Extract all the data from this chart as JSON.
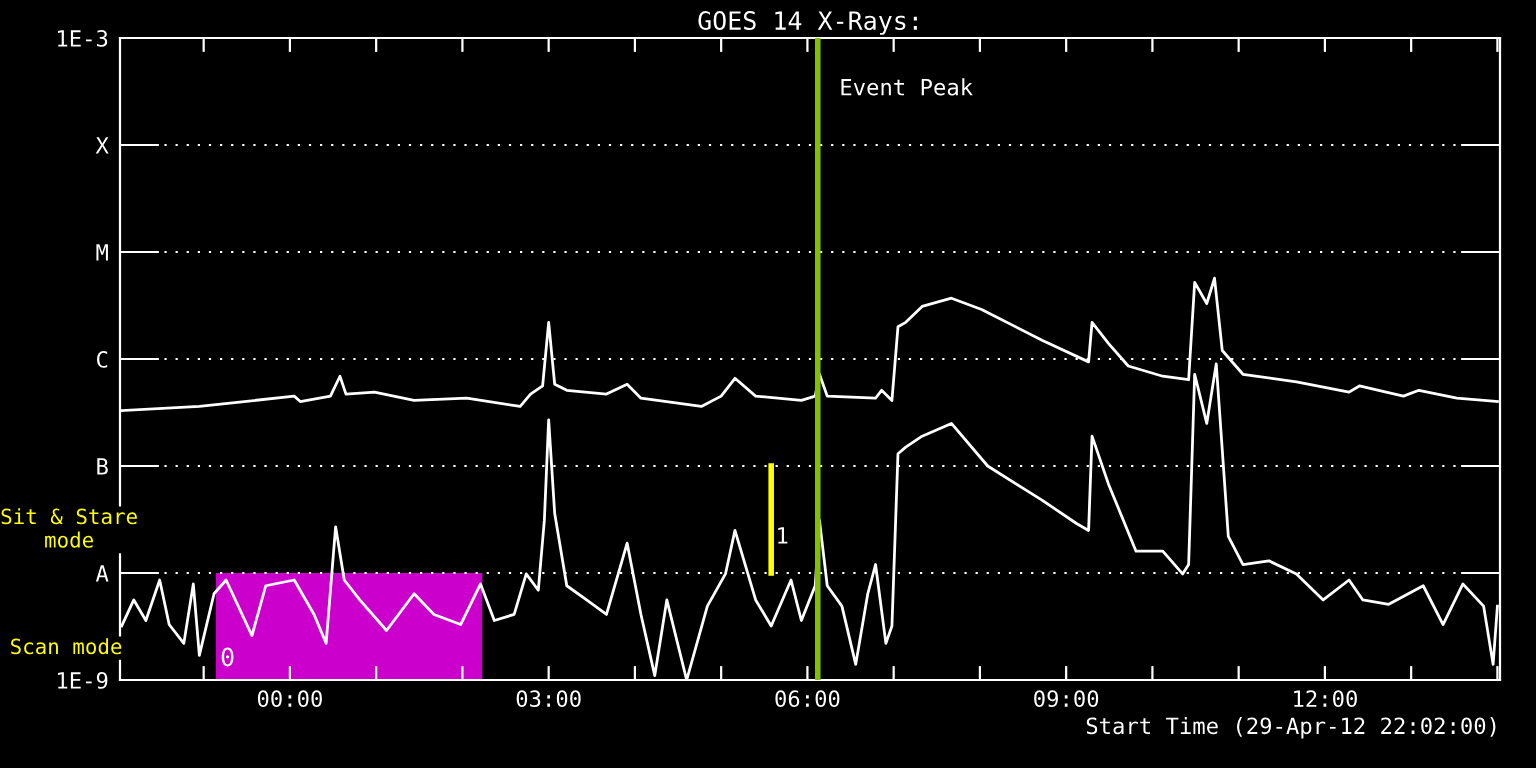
{
  "chart_data": {
    "type": "line",
    "title": "GOES 14 X-Rays:",
    "xlabel": "Start Time (29-Apr-12 22:02:00)",
    "log": "y",
    "grid": "y",
    "legend": false,
    "marker": "none",
    "line_style": "solid",
    "xlim": [
      -1.97,
      14.03
    ],
    "xticks": [
      {
        "value": -1,
        "label": null
      },
      {
        "value": 0,
        "label": "00:00"
      },
      {
        "value": 1,
        "label": null
      },
      {
        "value": 2,
        "label": null
      },
      {
        "value": 3,
        "label": "03:00"
      },
      {
        "value": 4,
        "label": null
      },
      {
        "value": 5,
        "label": null
      },
      {
        "value": 6,
        "label": "06:00"
      },
      {
        "value": 7,
        "label": null
      },
      {
        "value": 8,
        "label": null
      },
      {
        "value": 9,
        "label": "09:00"
      },
      {
        "value": 10,
        "label": null
      },
      {
        "value": 11,
        "label": null
      },
      {
        "value": 12,
        "label": "12:00"
      },
      {
        "value": 13,
        "label": null
      },
      {
        "value": 14,
        "label": null
      }
    ],
    "ylim": [
      1e-09,
      0.001
    ],
    "yticks": [
      {
        "value": 1e-09,
        "label": "1E-9"
      },
      {
        "value": 1e-08,
        "label": "A"
      },
      {
        "value": 1e-07,
        "label": "B"
      },
      {
        "value": 1e-06,
        "label": "C"
      },
      {
        "value": 1e-05,
        "label": "M"
      },
      {
        "value": 0.0001,
        "label": "X"
      },
      {
        "value": 0.001,
        "label": "1E-3"
      }
    ],
    "series": [
      {
        "color": "#ffffff",
        "x": [
          -1.95,
          -1.05,
          0.05,
          0.12,
          0.47,
          0.58,
          0.65,
          0.98,
          1.44,
          2.05,
          2.67,
          2.79,
          2.93,
          3.0,
          3.07,
          3.21,
          3.67,
          3.91,
          4.07,
          4.77,
          5.0,
          5.16,
          5.4,
          5.93,
          6.09,
          6.14,
          6.23,
          6.79,
          6.86,
          6.98,
          7.05,
          7.14,
          7.33,
          7.67,
          8.02,
          8.72,
          9.26,
          9.3,
          9.49,
          9.72,
          10.12,
          10.42,
          10.49,
          10.63,
          10.72,
          10.81,
          11.05,
          11.67,
          12.28,
          12.4,
          12.91,
          13.09,
          13.53,
          14.0
        ],
        "values": [
          3.3e-07,
          3.6e-07,
          4.5e-07,
          4e-07,
          4.5e-07,
          6.9e-07,
          4.7e-07,
          4.9e-07,
          4.1e-07,
          4.3e-07,
          3.6e-07,
          4.7e-07,
          5.6e-07,
          2.2e-06,
          5.8e-07,
          5.1e-07,
          4.7e-07,
          5.8e-07,
          4.3e-07,
          3.6e-07,
          4.5e-07,
          6.6e-07,
          4.5e-07,
          4.1e-07,
          4.5e-07,
          7.2e-07,
          4.5e-07,
          4.3e-07,
          5.1e-07,
          4.1e-07,
          2e-06,
          2.2e-06,
          3.1e-06,
          3.7e-06,
          2.9e-06,
          1.5e-06,
          9.4e-07,
          2.2e-06,
          1.4e-06,
          8.6e-07,
          6.9e-07,
          6.4e-07,
          5.2e-06,
          3.3e-06,
          5.7e-06,
          1.2e-06,
          7.2e-07,
          6.1e-07,
          4.9e-07,
          5.6e-07,
          4.5e-07,
          5.1e-07,
          4.3e-07,
          4e-07
        ]
      },
      {
        "color": "#ffffff",
        "x": [
          -1.95,
          -1.81,
          -1.67,
          -1.51,
          -1.4,
          -1.23,
          -1.12,
          -1.05,
          -0.88,
          -0.74,
          -0.44,
          -0.28,
          0.05,
          0.28,
          0.42,
          0.53,
          0.63,
          0.81,
          1.12,
          1.44,
          1.67,
          1.98,
          2.21,
          2.37,
          2.6,
          2.74,
          2.88,
          2.95,
          3.0,
          3.07,
          3.21,
          3.44,
          3.67,
          3.91,
          4.07,
          4.23,
          4.37,
          4.6,
          4.84,
          5.05,
          5.16,
          5.4,
          5.58,
          5.81,
          5.93,
          6.09,
          6.14,
          6.23,
          6.4,
          6.56,
          6.7,
          6.79,
          6.91,
          6.98,
          7.05,
          7.14,
          7.33,
          7.67,
          8.09,
          8.72,
          9.12,
          9.26,
          9.3,
          9.49,
          9.81,
          10.12,
          10.35,
          10.42,
          10.49,
          10.63,
          10.74,
          10.88,
          11.05,
          11.35,
          11.67,
          11.98,
          12.28,
          12.44,
          12.74,
          13.14,
          13.37,
          13.6,
          13.84,
          13.95,
          14.0
        ],
        "values": [
          3.2e-09,
          5.6e-09,
          3.6e-09,
          8.6e-09,
          3.3e-09,
          2.2e-09,
          7.9e-09,
          1.7e-09,
          6.4e-09,
          8.6e-09,
          2.6e-09,
          7.6e-09,
          8.6e-09,
          4.1e-09,
          2.2e-09,
          2.7e-08,
          8.6e-09,
          5.6e-09,
          2.9e-09,
          6.4e-09,
          4.1e-09,
          3.3e-09,
          7.9e-09,
          3.6e-09,
          4.1e-09,
          9.8e-09,
          6.9e-09,
          3.1e-08,
          2.7e-07,
          3.6e-08,
          7.6e-09,
          5.6e-09,
          4.1e-09,
          1.9e-08,
          4.1e-09,
          1.1e-09,
          5.6e-09,
          1e-09,
          4.9e-09,
          9.8e-09,
          2.5e-08,
          5.6e-09,
          3.2e-09,
          8.6e-09,
          3.6e-09,
          7.6e-09,
          3.1e-08,
          7.6e-09,
          4.9e-09,
          1.4e-09,
          6.4e-09,
          1.2e-08,
          2.2e-09,
          3.2e-09,
          1.3e-07,
          1.5e-07,
          1.9e-07,
          2.5e-07,
          1e-07,
          4.8e-08,
          2.9e-08,
          2.5e-08,
          1.9e-07,
          6.8e-08,
          1.6e-08,
          1.6e-08,
          9.8e-09,
          1.2e-08,
          7.2e-07,
          2.5e-07,
          9e-07,
          2.2e-08,
          1.2e-08,
          1.3e-08,
          9.8e-09,
          5.6e-09,
          8.6e-09,
          5.6e-09,
          5.1e-09,
          7.6e-09,
          3.3e-09,
          7.9e-09,
          4.9e-09,
          1.4e-09,
          4.9e-09
        ]
      }
    ],
    "ref_lines": [
      {
        "axis": "x",
        "value": 6.12,
        "label": "Event Peak",
        "color": "#80c000"
      },
      {
        "axis": "x",
        "value": 5.58,
        "color": "#ffff00"
      }
    ],
    "bands": [
      {
        "axis": "x",
        "from": -0.86,
        "to": 2.23,
        "color": "#cc00cc"
      }
    ],
    "annotations": [
      "Sit & Stare\nmode",
      "Scan mode",
      "0",
      "1"
    ]
  }
}
